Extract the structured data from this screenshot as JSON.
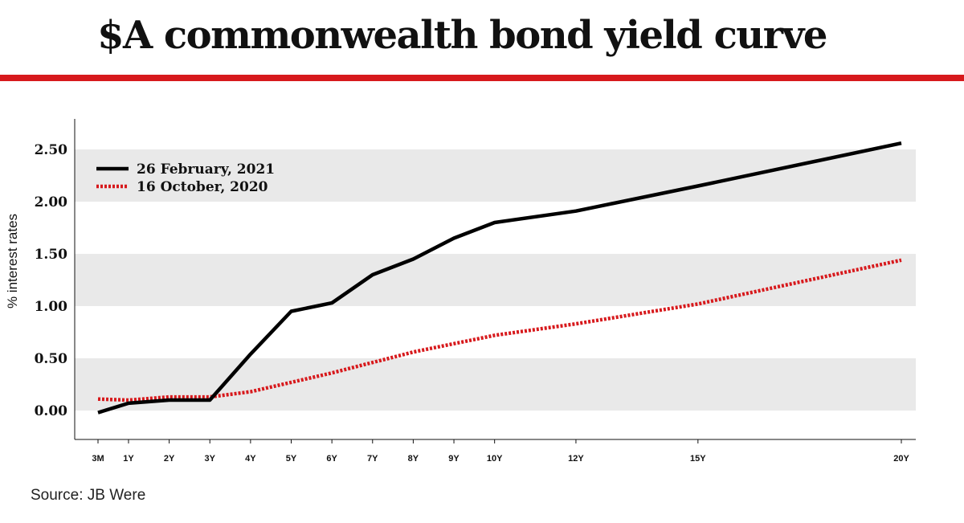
{
  "header": {
    "title": "$A commonwealth bond yield curve"
  },
  "source": "Source: JB Were",
  "colors": {
    "accent": "#d7191c",
    "series1": "#000000",
    "series2": "#d7191c",
    "band": "#e9e9e9"
  },
  "chart_data": {
    "type": "line",
    "title": "$A commonwealth bond yield curve",
    "ylabel": "% interest rates",
    "xlabel": "",
    "ylim": [
      -0.25,
      2.8
    ],
    "yticks": [
      0,
      0.5,
      1.0,
      1.5,
      2.0,
      2.5
    ],
    "ytick_labels": [
      "0.00",
      "0.50",
      "1.00",
      "1.50",
      "2.00",
      "2.50"
    ],
    "x_years": [
      0.25,
      1,
      2,
      3,
      4,
      5,
      6,
      7,
      8,
      9,
      10,
      12,
      15,
      20
    ],
    "categories": [
      "3M",
      "1Y",
      "2Y",
      "3Y",
      "4Y",
      "5Y",
      "6Y",
      "7Y",
      "8Y",
      "9Y",
      "10Y",
      "12Y",
      "15Y",
      "20Y"
    ],
    "grid_bands": [
      [
        0,
        0.5
      ],
      [
        1.0,
        1.5
      ],
      [
        2.0,
        2.5
      ]
    ],
    "legend_position": "top-left",
    "series": [
      {
        "name": "26 February, 2021",
        "style": "solid",
        "values": [
          -0.02,
          0.07,
          0.1,
          0.1,
          0.54,
          0.95,
          1.03,
          1.3,
          1.45,
          1.65,
          1.8,
          1.91,
          2.15,
          2.56
        ]
      },
      {
        "name": "16 October, 2020",
        "style": "dotted",
        "values": [
          0.11,
          0.1,
          0.13,
          0.13,
          0.18,
          0.27,
          0.36,
          0.46,
          0.56,
          0.64,
          0.72,
          0.83,
          1.02,
          1.44
        ]
      }
    ]
  }
}
